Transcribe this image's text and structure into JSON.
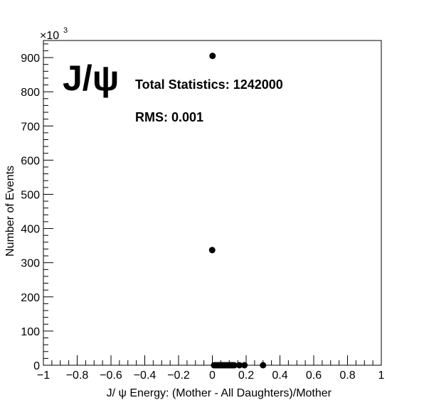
{
  "chart_data": {
    "type": "scatter",
    "title_big": "J/ψ",
    "annotations": {
      "total_statistics": "Total Statistics: 1242000",
      "rms": "RMS: 0.001"
    },
    "xlabel": "J/ ψ  Energy: (Mother - All Daughters)/Mother",
    "ylabel": "Number of Events",
    "y_multiplier_base": "×10",
    "y_multiplier_exp": "3",
    "xlim": [
      -1,
      1
    ],
    "ylim": [
      0,
      950
    ],
    "x_ticks": [
      -1,
      -0.8,
      -0.6,
      -0.4,
      -0.2,
      0,
      0.2,
      0.4,
      0.6,
      0.8,
      1
    ],
    "x_tick_labels": [
      "−1",
      "−0.8",
      "−0.6",
      "−0.4",
      "−0.2",
      "0",
      "0.2",
      "0.4",
      "0.6",
      "0.8",
      "1"
    ],
    "y_ticks": [
      0,
      100,
      200,
      300,
      400,
      500,
      600,
      700,
      800,
      900
    ],
    "y_tick_labels": [
      "0",
      "100",
      "200",
      "300",
      "400",
      "500",
      "600",
      "700",
      "800",
      "900"
    ],
    "points": [
      {
        "x": -0.001,
        "y": 337
      },
      {
        "x": 0.001,
        "y": 905
      },
      {
        "x": 0.01,
        "y": 0
      },
      {
        "x": 0.02,
        "y": 0
      },
      {
        "x": 0.03,
        "y": 0
      },
      {
        "x": 0.04,
        "y": 0
      },
      {
        "x": 0.05,
        "y": 0
      },
      {
        "x": 0.06,
        "y": 0
      },
      {
        "x": 0.07,
        "y": 0
      },
      {
        "x": 0.08,
        "y": 0
      },
      {
        "x": 0.09,
        "y": 0
      },
      {
        "x": 0.1,
        "y": 0
      },
      {
        "x": 0.11,
        "y": 0
      },
      {
        "x": 0.12,
        "y": 0
      },
      {
        "x": 0.13,
        "y": 0
      },
      {
        "x": 0.16,
        "y": 0
      },
      {
        "x": 0.19,
        "y": 0
      },
      {
        "x": 0.3,
        "y": 0
      }
    ],
    "marker_color": "#000000",
    "grid": false,
    "legend": "none"
  }
}
